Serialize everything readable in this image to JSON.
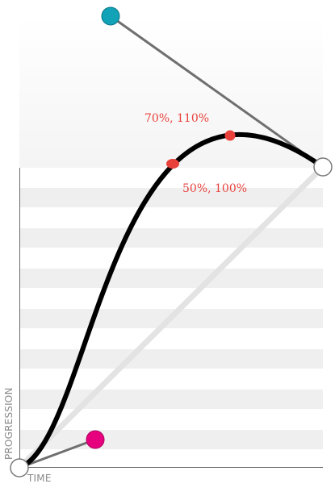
{
  "axes": {
    "x_label": "TIME",
    "y_label": "PROGRESSION"
  },
  "annotations": {
    "point_a": "70%, 110%",
    "point_b": "50%, 100%"
  },
  "colors": {
    "control_point_1": "#e6007e",
    "control_point_2": "#11a2b8",
    "curve": "#000000",
    "annotation_marker": "#e8413c",
    "stripe": "#efefef"
  },
  "icons": {
    "start_point": "start-handle-icon",
    "end_point": "end-handle-icon",
    "control_1": "control-point-1-icon",
    "control_2": "control-point-2-icon"
  }
}
